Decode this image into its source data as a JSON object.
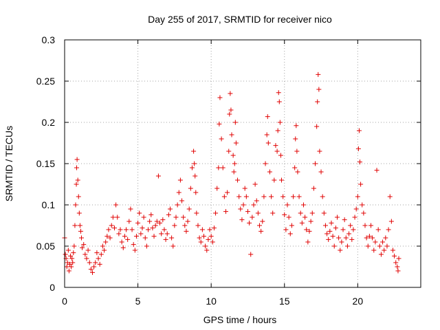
{
  "chart_data": {
    "type": "scatter",
    "title": "Day 255 of 2017, SRMTID for receiver nico",
    "xlabel": "GPS time / hours",
    "ylabel": "SRMTID / TECUs",
    "xlim": [
      0,
      24.3
    ],
    "ylim": [
      0,
      0.3
    ],
    "xticks": [
      0,
      5,
      10,
      15,
      20
    ],
    "xtick_labels": [
      "0",
      "5",
      "10",
      "15",
      "20"
    ],
    "yticks": [
      0,
      0.05,
      0.1,
      0.15,
      0.2,
      0.25,
      0.3
    ],
    "ytick_labels": [
      "0",
      "0.05",
      "0.1",
      "0.15",
      "0.2",
      "0.25",
      "0.3"
    ],
    "grid": true,
    "marker": "plus",
    "color": "#e00000",
    "series": [
      {
        "name": "SRMTID",
        "points": [
          [
            0.0,
            0.06
          ],
          [
            0.05,
            0.04
          ],
          [
            0.1,
            0.035
          ],
          [
            0.15,
            0.025
          ],
          [
            0.2,
            0.03
          ],
          [
            0.25,
            0.045
          ],
          [
            0.3,
            0.02
          ],
          [
            0.35,
            0.028
          ],
          [
            0.4,
            0.038
          ],
          [
            0.45,
            0.025
          ],
          [
            0.5,
            0.035
          ],
          [
            0.55,
            0.03
          ],
          [
            0.6,
            0.042
          ],
          [
            0.65,
            0.05
          ],
          [
            0.7,
            0.075
          ],
          [
            0.75,
            0.1
          ],
          [
            0.8,
            0.125
          ],
          [
            0.82,
            0.145
          ],
          [
            0.85,
            0.155
          ],
          [
            0.9,
            0.13
          ],
          [
            0.95,
            0.11
          ],
          [
            1.0,
            0.09
          ],
          [
            1.05,
            0.075
          ],
          [
            1.1,
            0.068
          ],
          [
            1.15,
            0.06
          ],
          [
            1.2,
            0.048
          ],
          [
            1.3,
            0.052
          ],
          [
            1.4,
            0.04
          ],
          [
            1.5,
            0.035
          ],
          [
            1.6,
            0.045
          ],
          [
            1.7,
            0.03
          ],
          [
            1.8,
            0.022
          ],
          [
            1.9,
            0.018
          ],
          [
            2.0,
            0.025
          ],
          [
            2.1,
            0.03
          ],
          [
            2.2,
            0.042
          ],
          [
            2.3,
            0.035
          ],
          [
            2.4,
            0.028
          ],
          [
            2.5,
            0.04
          ],
          [
            2.6,
            0.05
          ],
          [
            2.7,
            0.045
          ],
          [
            2.8,
            0.055
          ],
          [
            2.9,
            0.062
          ],
          [
            3.0,
            0.07
          ],
          [
            3.1,
            0.06
          ],
          [
            3.2,
            0.075
          ],
          [
            3.3,
            0.085
          ],
          [
            3.4,
            0.072
          ],
          [
            3.5,
            0.1
          ],
          [
            3.6,
            0.085
          ],
          [
            3.7,
            0.065
          ],
          [
            3.8,
            0.07
          ],
          [
            3.9,
            0.055
          ],
          [
            4.0,
            0.048
          ],
          [
            4.1,
            0.062
          ],
          [
            4.2,
            0.07
          ],
          [
            4.3,
            0.058
          ],
          [
            4.4,
            0.08
          ],
          [
            4.5,
            0.095
          ],
          [
            4.6,
            0.07
          ],
          [
            4.7,
            0.052
          ],
          [
            4.8,
            0.045
          ],
          [
            4.9,
            0.062
          ],
          [
            5.0,
            0.078
          ],
          [
            5.1,
            0.09
          ],
          [
            5.2,
            0.065
          ],
          [
            5.3,
            0.072
          ],
          [
            5.4,
            0.085
          ],
          [
            5.5,
            0.06
          ],
          [
            5.6,
            0.05
          ],
          [
            5.7,
            0.07
          ],
          [
            5.8,
            0.08
          ],
          [
            5.9,
            0.088
          ],
          [
            6.0,
            0.072
          ],
          [
            6.1,
            0.062
          ],
          [
            6.2,
            0.075
          ],
          [
            6.3,
            0.08
          ],
          [
            6.4,
            0.135
          ],
          [
            6.5,
            0.078
          ],
          [
            6.6,
            0.065
          ],
          [
            6.7,
            0.082
          ],
          [
            6.8,
            0.07
          ],
          [
            6.9,
            0.058
          ],
          [
            7.0,
            0.065
          ],
          [
            7.1,
            0.088
          ],
          [
            7.2,
            0.095
          ],
          [
            7.3,
            0.06
          ],
          [
            7.4,
            0.05
          ],
          [
            7.5,
            0.075
          ],
          [
            7.6,
            0.085
          ],
          [
            7.7,
            0.1
          ],
          [
            7.8,
            0.115
          ],
          [
            7.9,
            0.13
          ],
          [
            8.0,
            0.105
          ],
          [
            8.1,
            0.085
          ],
          [
            8.2,
            0.075
          ],
          [
            8.3,
            0.068
          ],
          [
            8.4,
            0.08
          ],
          [
            8.5,
            0.095
          ],
          [
            8.6,
            0.12
          ],
          [
            8.7,
            0.145
          ],
          [
            8.8,
            0.165
          ],
          [
            8.85,
            0.15
          ],
          [
            8.9,
            0.135
          ],
          [
            8.95,
            0.115
          ],
          [
            9.0,
            0.09
          ],
          [
            9.1,
            0.075
          ],
          [
            9.2,
            0.06
          ],
          [
            9.3,
            0.055
          ],
          [
            9.4,
            0.07
          ],
          [
            9.5,
            0.062
          ],
          [
            9.6,
            0.05
          ],
          [
            9.7,
            0.045
          ],
          [
            9.8,
            0.058
          ],
          [
            9.9,
            0.07
          ],
          [
            10.0,
            0.062
          ],
          [
            10.1,
            0.055
          ],
          [
            10.2,
            0.072
          ],
          [
            10.3,
            0.09
          ],
          [
            10.4,
            0.12
          ],
          [
            10.5,
            0.145
          ],
          [
            10.55,
            0.198
          ],
          [
            10.6,
            0.23
          ],
          [
            10.7,
            0.18
          ],
          [
            10.8,
            0.145
          ],
          [
            10.9,
            0.11
          ],
          [
            11.0,
            0.092
          ],
          [
            11.1,
            0.115
          ],
          [
            11.2,
            0.165
          ],
          [
            11.25,
            0.21
          ],
          [
            11.3,
            0.235
          ],
          [
            11.35,
            0.215
          ],
          [
            11.4,
            0.185
          ],
          [
            11.5,
            0.16
          ],
          [
            11.55,
            0.14
          ],
          [
            11.6,
            0.15
          ],
          [
            11.65,
            0.2
          ],
          [
            11.7,
            0.175
          ],
          [
            11.8,
            0.13
          ],
          [
            11.9,
            0.11
          ],
          [
            12.0,
            0.095
          ],
          [
            12.1,
            0.082
          ],
          [
            12.2,
            0.1
          ],
          [
            12.3,
            0.12
          ],
          [
            12.4,
            0.11
          ],
          [
            12.5,
            0.092
          ],
          [
            12.6,
            0.078
          ],
          [
            12.7,
            0.04
          ],
          [
            12.8,
            0.085
          ],
          [
            12.9,
            0.1
          ],
          [
            13.0,
            0.125
          ],
          [
            13.1,
            0.105
          ],
          [
            13.2,
            0.09
          ],
          [
            13.3,
            0.075
          ],
          [
            13.4,
            0.068
          ],
          [
            13.5,
            0.08
          ],
          [
            13.6,
            0.11
          ],
          [
            13.7,
            0.15
          ],
          [
            13.8,
            0.185
          ],
          [
            13.85,
            0.207
          ],
          [
            13.9,
            0.175
          ],
          [
            14.0,
            0.14
          ],
          [
            14.1,
            0.11
          ],
          [
            14.2,
            0.09
          ],
          [
            14.3,
            0.13
          ],
          [
            14.4,
            0.172
          ],
          [
            14.5,
            0.165
          ],
          [
            14.55,
            0.19
          ],
          [
            14.6,
            0.236
          ],
          [
            14.65,
            0.225
          ],
          [
            14.7,
            0.2
          ],
          [
            14.75,
            0.16
          ],
          [
            14.8,
            0.13
          ],
          [
            14.9,
            0.11
          ],
          [
            15.0,
            0.088
          ],
          [
            15.1,
            0.07
          ],
          [
            15.2,
            0.1
          ],
          [
            15.3,
            0.085
          ],
          [
            15.4,
            0.065
          ],
          [
            15.5,
            0.075
          ],
          [
            15.6,
            0.11
          ],
          [
            15.7,
            0.145
          ],
          [
            15.75,
            0.18
          ],
          [
            15.8,
            0.196
          ],
          [
            15.85,
            0.165
          ],
          [
            15.9,
            0.14
          ],
          [
            16.0,
            0.11
          ],
          [
            16.1,
            0.09
          ],
          [
            16.2,
            0.078
          ],
          [
            16.3,
            0.1
          ],
          [
            16.4,
            0.085
          ],
          [
            16.5,
            0.07
          ],
          [
            16.6,
            0.055
          ],
          [
            16.7,
            0.068
          ],
          [
            16.8,
            0.08
          ],
          [
            16.9,
            0.09
          ],
          [
            17.0,
            0.12
          ],
          [
            17.1,
            0.15
          ],
          [
            17.2,
            0.195
          ],
          [
            17.25,
            0.225
          ],
          [
            17.3,
            0.258
          ],
          [
            17.35,
            0.24
          ],
          [
            17.4,
            0.165
          ],
          [
            17.5,
            0.14
          ],
          [
            17.6,
            0.11
          ],
          [
            17.7,
            0.09
          ],
          [
            17.8,
            0.075
          ],
          [
            17.9,
            0.065
          ],
          [
            18.0,
            0.058
          ],
          [
            18.1,
            0.068
          ],
          [
            18.2,
            0.078
          ],
          [
            18.3,
            0.062
          ],
          [
            18.4,
            0.05
          ],
          [
            18.5,
            0.072
          ],
          [
            18.6,
            0.085
          ],
          [
            18.7,
            0.06
          ],
          [
            18.8,
            0.045
          ],
          [
            18.9,
            0.055
          ],
          [
            19.0,
            0.07
          ],
          [
            19.1,
            0.082
          ],
          [
            19.2,
            0.06
          ],
          [
            19.3,
            0.05
          ],
          [
            19.4,
            0.065
          ],
          [
            19.5,
            0.075
          ],
          [
            19.6,
            0.058
          ],
          [
            19.7,
            0.07
          ],
          [
            19.8,
            0.085
          ],
          [
            19.9,
            0.095
          ],
          [
            20.0,
            0.11
          ],
          [
            20.05,
            0.168
          ],
          [
            20.1,
            0.19
          ],
          [
            20.15,
            0.152
          ],
          [
            20.2,
            0.125
          ],
          [
            20.3,
            0.1
          ],
          [
            20.4,
            0.09
          ],
          [
            20.5,
            0.075
          ],
          [
            20.6,
            0.06
          ],
          [
            20.7,
            0.05
          ],
          [
            20.8,
            0.062
          ],
          [
            20.9,
            0.075
          ],
          [
            21.0,
            0.06
          ],
          [
            21.1,
            0.045
          ],
          [
            21.2,
            0.055
          ],
          [
            21.3,
            0.142
          ],
          [
            21.4,
            0.07
          ],
          [
            21.5,
            0.05
          ],
          [
            21.6,
            0.04
          ],
          [
            21.7,
            0.055
          ],
          [
            21.8,
            0.045
          ],
          [
            21.9,
            0.06
          ],
          [
            22.0,
            0.05
          ],
          [
            22.1,
            0.07
          ],
          [
            22.2,
            0.11
          ],
          [
            22.3,
            0.08
          ],
          [
            22.4,
            0.045
          ],
          [
            22.5,
            0.038
          ],
          [
            22.6,
            0.03
          ],
          [
            22.7,
            0.025
          ],
          [
            22.75,
            0.02
          ],
          [
            22.8,
            0.035
          ]
        ]
      }
    ]
  }
}
